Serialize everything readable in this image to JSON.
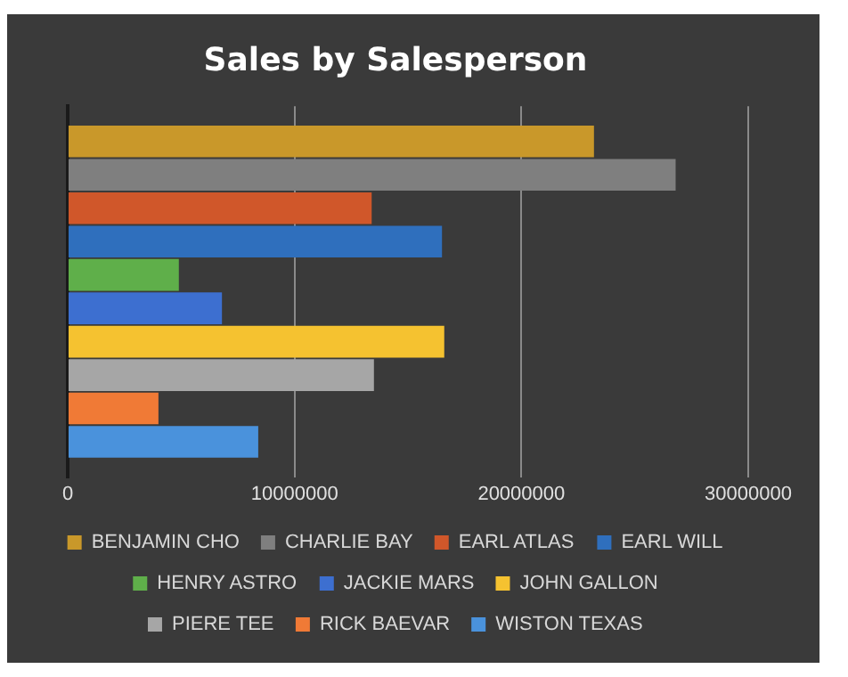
{
  "chart_data": {
    "type": "bar",
    "title": "Sales by Salesperson",
    "orientation": "horizontal",
    "categories": [
      null
    ],
    "series": [
      {
        "name": "BENJAMIN CHO",
        "color": "#c9982a",
        "values": [
          23200000
        ]
      },
      {
        "name": "CHARLIE BAY",
        "color": "#7f7f7f",
        "values": [
          26800000
        ]
      },
      {
        "name": "EARL ATLAS",
        "color": "#d0572a",
        "values": [
          13400000
        ]
      },
      {
        "name": "EARL WILL",
        "color": "#2f6fbd",
        "values": [
          16500000
        ]
      },
      {
        "name": "HENRY ASTRO",
        "color": "#5faf4a",
        "values": [
          4900000
        ]
      },
      {
        "name": "JACKIE MARS",
        "color": "#3d6fd0",
        "values": [
          6800000
        ]
      },
      {
        "name": "JOHN GALLON",
        "color": "#f5c230",
        "values": [
          16600000
        ]
      },
      {
        "name": "PIERE TEE",
        "color": "#a6a6a6",
        "values": [
          13500000
        ]
      },
      {
        "name": "RICK BAEVAR",
        "color": "#f07a36",
        "values": [
          4000000
        ]
      },
      {
        "name": "WISTON TEXAS",
        "color": "#4a92dc",
        "values": [
          8400000
        ]
      }
    ],
    "xlim": [
      0,
      30000000
    ],
    "xticks": [
      0,
      10000000,
      20000000,
      30000000
    ],
    "grid": "x",
    "legend": "bottom"
  }
}
